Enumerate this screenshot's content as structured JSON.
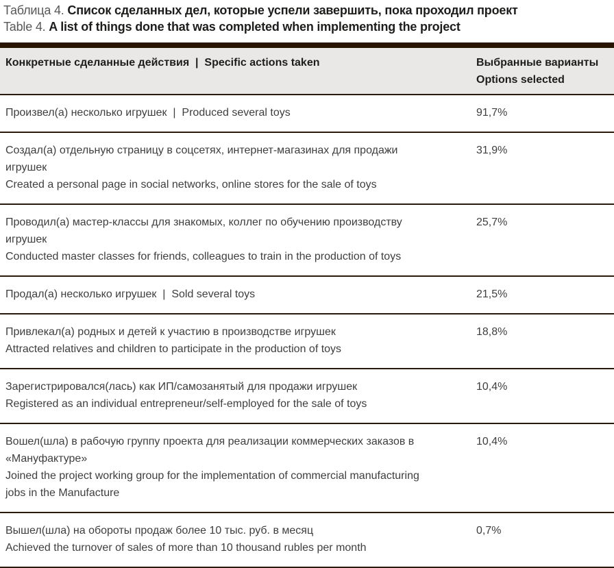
{
  "caption": {
    "title_ru_label": "Таблица 4.",
    "title_ru_text": "Список сделанных дел, которые успели завершить, пока проходил проект",
    "title_en_label": "Table 4.",
    "title_en_text": "A list of things done that was completed when implementing the project"
  },
  "table": {
    "header": {
      "actions_col": "Конкретные сделанные действия  |  Specific actions taken",
      "options_col_ru": "Выбранные варианты",
      "options_col_en": "Options selected"
    },
    "rows": [
      {
        "lines": [
          "Произвел(а) несколько игрушек  |  Produced several toys"
        ],
        "value": "91,7%"
      },
      {
        "lines": [
          "Создал(а) отдельную страницу в соцсетях, интернет-магазинах для продажи игрушек",
          "Created a personal page in social networks, online stores for the sale of toys"
        ],
        "value": "31,9%"
      },
      {
        "lines": [
          "Проводил(а) мастер-классы для знакомых, коллег по обучению производству игрушек",
          "Conducted master classes for friends, colleagues to train in the production of toys"
        ],
        "value": "25,7%"
      },
      {
        "lines": [
          "Продал(а) несколько игрушек  |  Sold several toys"
        ],
        "value": "21,5%"
      },
      {
        "lines": [
          "Привлекал(а) родных и детей к участию в производстве игрушек",
          "Attracted relatives and children to participate in the production of toys"
        ],
        "value": "18,8%"
      },
      {
        "lines": [
          "Зарегистрировался(лась) как ИП/самозанятый для продажи игрушек",
          "Registered as an individual entrepreneur/self-employed for the sale of toys"
        ],
        "value": "10,4%"
      },
      {
        "lines": [
          "Вошел(шла) в рабочую группу проекта для реализации коммерческих заказов в «Мануфактуре»",
          "Joined the project working group for the implementation of commercial manufacturing jobs in the Manufacture"
        ],
        "value": "10,4%"
      },
      {
        "lines": [
          "Вышел(шла) на обороты продаж более 10 тыс. руб. в месяц",
          "Achieved the turnover of sales of more than 10 thousand rubles per month"
        ],
        "value": "0,7%"
      }
    ]
  },
  "colors": {
    "accent_bar": "#281403",
    "separator": "#2b190b",
    "header_bg": "#e9e8e7",
    "title_label": "#58585a",
    "title_strong": "#1d1d1b",
    "body_text": "#3f3e3e"
  }
}
